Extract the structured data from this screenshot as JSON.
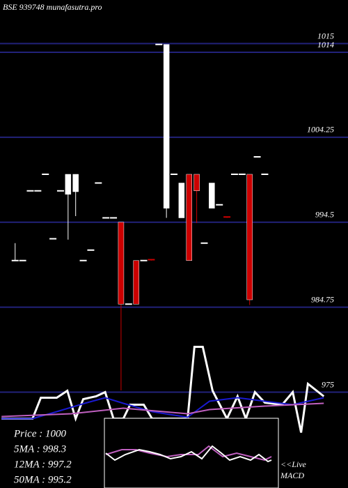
{
  "chart_data": {
    "type": "candlestick",
    "title": "BSE 939748 munafasutra.pro",
    "open": [
      990.1,
      990.1,
      998.1,
      998.1,
      1000,
      992.6,
      998.1,
      997.7,
      998,
      990.1,
      991.3,
      999,
      995,
      995,
      994.5,
      985.1,
      990.1,
      990.1,
      990.2,
      1014.9,
      996.1,
      1000,
      995,
      1000,
      1000,
      992.1,
      996.1,
      996.5,
      995.1,
      1000,
      1000,
      1000,
      1002,
      1000
    ],
    "high": [
      992.1,
      990.1,
      998.1,
      998.1,
      1000,
      992.6,
      998.1,
      1000,
      1000,
      990.1,
      991.3,
      999,
      995,
      995,
      994.5,
      985.1,
      990.1,
      990.1,
      990.2,
      1014.9,
      1014.9,
      1000,
      999,
      1000,
      1000,
      992.1,
      999,
      996.5,
      995.1,
      1000,
      1000,
      1000,
      1002,
      1000
    ],
    "low": [
      990.1,
      990.1,
      998.1,
      998.1,
      1000,
      992.6,
      998.1,
      992.5,
      995.2,
      990.1,
      991.3,
      999,
      995,
      995,
      975.2,
      985.1,
      985.1,
      990.1,
      990.1,
      1014.9,
      995,
      1000,
      995,
      990.1,
      994.4,
      992.1,
      996.1,
      996.5,
      995,
      1000,
      1000,
      985,
      1002,
      1000
    ],
    "close": [
      990.1,
      990.1,
      998.1,
      998.1,
      1000,
      992.6,
      998.1,
      1000,
      1000,
      990.1,
      991.3,
      999,
      995,
      995,
      985.1,
      985.1,
      985.1,
      990.1,
      990.1,
      1014.9,
      1014.9,
      1000,
      999,
      990.1,
      998.1,
      992.1,
      999,
      996.5,
      995,
      1000,
      1000,
      985.6,
      1002,
      1000
    ],
    "up_color": "#ffffff",
    "down_color": "#cc0000",
    "ylim": [
      964,
      1020
    ],
    "xlim": [
      -2,
      44
    ],
    "yticks": [
      1015,
      1014,
      1004.25,
      994.5,
      984.75,
      975
    ],
    "grid": true,
    "grid_color": "#22227a",
    "lines": [
      {
        "color": "#ffffff",
        "x": [
          -1.8,
          2.3,
          3.4,
          5.5,
          6.9,
          8.0,
          9.0,
          10.7,
          11.9,
          13.0,
          14.3,
          15.2,
          17.0,
          18.1,
          22.8,
          23.7,
          24.8,
          26.1,
          28.0,
          29.4,
          30.5,
          31.7,
          33.0,
          35.3,
          36.7,
          37.8,
          38.7,
          40.8
        ],
        "values": [
          971.96,
          971.96,
          974.36,
          974.36,
          975.16,
          971.96,
          974.2,
          974.52,
          975,
          971.96,
          971.96,
          973.56,
          973.56,
          971.96,
          971.96,
          980.2,
          980.2,
          975.16,
          971.96,
          974.52,
          971.96,
          975,
          973.8,
          973.56,
          975,
          970.36,
          975.96,
          974.52
        ]
      },
      {
        "color": "#1a1ad0",
        "x": [
          -1.8,
          2.3,
          5.5,
          9.2,
          11.9,
          14.3,
          18.1,
          22.8,
          25.7,
          29.4,
          33.0,
          36.7,
          40.8
        ],
        "values": [
          971.96,
          971.96,
          972.76,
          973.72,
          974.36,
          973.72,
          972.76,
          972.12,
          973.96,
          974.36,
          973.96,
          973.56,
          974.36
        ]
      },
      {
        "color": "#c060c0",
        "x": [
          -1.8,
          7.4,
          14.3,
          22.8,
          25.7,
          33.0,
          40.8
        ],
        "values": [
          972.2,
          972.52,
          973.16,
          972.52,
          973,
          973.4,
          973.72
        ]
      }
    ],
    "legend": [
      "Price  : 1000",
      "5MA : 998.3",
      "12MA : 997.2",
      "50MA : 995.2"
    ],
    "live_label": "<<Live",
    "macd_label": "MACD"
  }
}
